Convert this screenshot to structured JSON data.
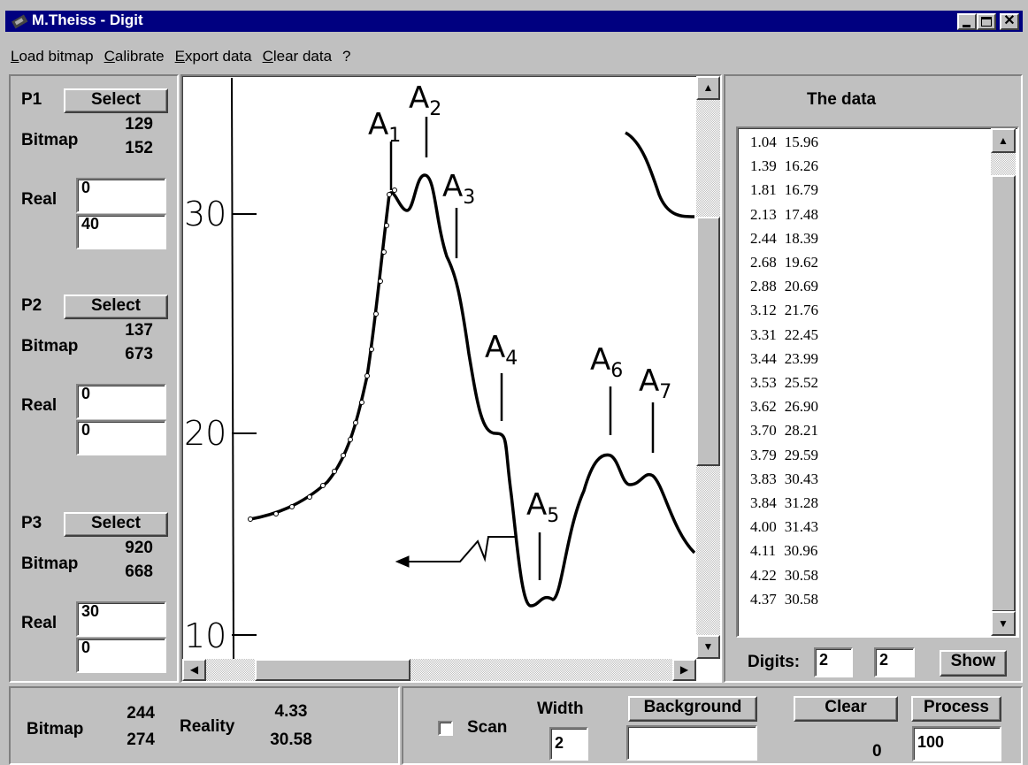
{
  "window": {
    "title": "M.Theiss - Digit"
  },
  "menu": [
    "Load bitmap",
    "Calibrate",
    "Export data",
    "Clear data",
    "?"
  ],
  "points": [
    {
      "name": "P1",
      "button": "Select",
      "bitmap_label": "Bitmap",
      "bitmap": [
        "129",
        "152"
      ],
      "real_label": "Real",
      "real": [
        "0",
        "40"
      ]
    },
    {
      "name": "P2",
      "button": "Select",
      "bitmap_label": "Bitmap",
      "bitmap": [
        "137",
        "673"
      ],
      "real_label": "Real",
      "real": [
        "0",
        "0"
      ]
    },
    {
      "name": "P3",
      "button": "Select",
      "bitmap_label": "Bitmap",
      "bitmap": [
        "920",
        "668"
      ],
      "real_label": "Real",
      "real": [
        "30",
        "0"
      ]
    }
  ],
  "bitmap": {
    "axis_labels": [
      "30",
      "20",
      "10"
    ],
    "peaks": [
      {
        "letter": "A",
        "index": "1"
      },
      {
        "letter": "A",
        "index": "2"
      },
      {
        "letter": "A",
        "index": "3"
      },
      {
        "letter": "A",
        "index": "4"
      },
      {
        "letter": "A",
        "index": "5"
      },
      {
        "letter": "A",
        "index": "6"
      },
      {
        "letter": "A",
        "index": "7"
      }
    ]
  },
  "data_panel": {
    "title": "The data",
    "rows": [
      [
        "1.04",
        "15.96"
      ],
      [
        "1.39",
        "16.26"
      ],
      [
        "1.81",
        "16.79"
      ],
      [
        "2.13",
        "17.48"
      ],
      [
        "2.44",
        "18.39"
      ],
      [
        "2.68",
        "19.62"
      ],
      [
        "2.88",
        "20.69"
      ],
      [
        "3.12",
        "21.76"
      ],
      [
        "3.31",
        "22.45"
      ],
      [
        "3.44",
        "23.99"
      ],
      [
        "3.53",
        "25.52"
      ],
      [
        "3.62",
        "26.90"
      ],
      [
        "3.70",
        "28.21"
      ],
      [
        "3.79",
        "29.59"
      ],
      [
        "3.83",
        "30.43"
      ],
      [
        "3.84",
        "31.28"
      ],
      [
        "4.00",
        "31.43"
      ],
      [
        "4.11",
        "30.96"
      ],
      [
        "4.22",
        "30.58"
      ],
      [
        "4.37",
        "30.58"
      ]
    ],
    "digits_label": "Digits:",
    "digits": [
      "2",
      "2"
    ],
    "show": "Show"
  },
  "status": {
    "bitmap_label": "Bitmap",
    "bitmap": [
      "244",
      "274"
    ],
    "reality_label": "Reality",
    "reality": [
      "4.33",
      "30.58"
    ],
    "scan": "Scan",
    "width_label": "Width",
    "width": "2",
    "background": "Background",
    "clear": "Clear",
    "process": "Process",
    "count": "0",
    "process_value": "100"
  }
}
